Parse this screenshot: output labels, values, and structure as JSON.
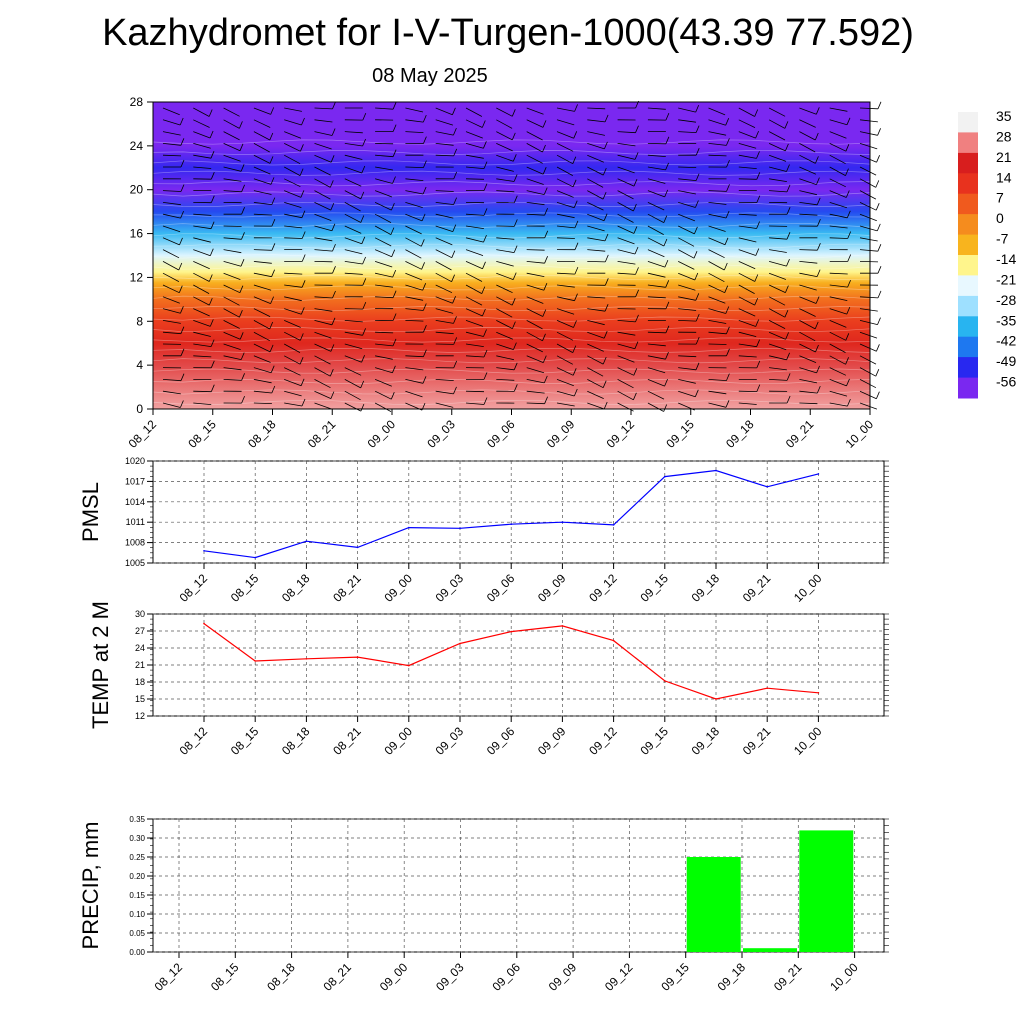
{
  "title": "Kazhydromet for I-V-Turgen-1000(43.39 77.592)",
  "subtitle": "08 May 2025",
  "chart_data": [
    {
      "type": "heatmap",
      "description_key": "cross-section",
      "x_categories": [
        "08_12",
        "08_15",
        "08_18",
        "08_21",
        "09_00",
        "09_03",
        "09_06",
        "09_09",
        "09_12",
        "09_15",
        "09_18",
        "09_21",
        "10_00"
      ],
      "y_ticks": [
        0,
        4,
        8,
        12,
        16,
        20,
        24,
        28
      ],
      "ylim": [
        0,
        28
      ],
      "colorbar_labels": [
        "35",
        "28",
        "21",
        "14",
        "7",
        "0",
        "-7",
        "-14",
        "-21",
        "-28",
        "-35",
        "-42",
        "-49",
        "-56"
      ],
      "colorbar_colors": [
        "#f2f2f2",
        "#f08080",
        "#d81e1e",
        "#e8321e",
        "#f05a1e",
        "#f58c1e",
        "#f8b41e",
        "#fff58c",
        "#e8f8ff",
        "#9ee0ff",
        "#28b4f0",
        "#1e78f0",
        "#2828f0",
        "#7a28f0"
      ],
      "field_bands": [
        {
          "y": 0,
          "value": 30
        },
        {
          "y": 4,
          "value": 24
        },
        {
          "y": 6,
          "value": 18
        },
        {
          "y": 8,
          "value": 12
        },
        {
          "y": 10,
          "value": 4
        },
        {
          "y": 11.5,
          "value": -6
        },
        {
          "y": 12.5,
          "value": -14
        },
        {
          "y": 14,
          "value": -22
        },
        {
          "y": 16,
          "value": -34
        },
        {
          "y": 18,
          "value": -46
        },
        {
          "y": 20,
          "value": -56
        },
        {
          "y": 22,
          "value": -50
        },
        {
          "y": 24,
          "value": -62
        },
        {
          "y": 28,
          "value": -64
        }
      ]
    },
    {
      "type": "line",
      "ylabel": "PMSL",
      "categories": [
        "08_12",
        "08_15",
        "08_18",
        "08_21",
        "09_00",
        "09_03",
        "09_06",
        "09_09",
        "09_12",
        "09_15",
        "09_18",
        "09_21",
        "10_00"
      ],
      "series": [
        {
          "values": [
            1006.8,
            1005.8,
            1008.2,
            1007.3,
            1010.2,
            1010.1,
            1010.7,
            1011.0,
            1010.6,
            1017.7,
            1018.6,
            1016.2,
            1018.1
          ],
          "color": "#0000ff"
        }
      ],
      "ylim": [
        1005,
        1020
      ],
      "yticks": [
        "1005",
        "1008",
        "1011",
        "1014",
        "1017",
        "1020"
      ]
    },
    {
      "type": "line",
      "ylabel": "TEMP at 2 M",
      "categories": [
        "08_12",
        "08_15",
        "08_18",
        "08_21",
        "09_00",
        "09_03",
        "09_06",
        "09_09",
        "09_12",
        "09_15",
        "09_18",
        "09_21",
        "10_00"
      ],
      "series": [
        {
          "values": [
            28.3,
            21.7,
            22.1,
            22.4,
            20.9,
            24.8,
            26.9,
            27.9,
            25.3,
            18.2,
            15.0,
            16.9,
            16.1
          ],
          "color": "#ff0000"
        }
      ],
      "ylim": [
        12,
        30
      ],
      "yticks": [
        "12",
        "15",
        "18",
        "21",
        "24",
        "27",
        "30"
      ]
    },
    {
      "type": "bar",
      "ylabel": "PRECIP, mm",
      "categories": [
        "08_12",
        "08_15",
        "08_18",
        "08_21",
        "09_00",
        "09_03",
        "09_06",
        "09_09",
        "09_12",
        "09_15",
        "09_18",
        "09_21",
        "10_00"
      ],
      "values": [
        0,
        0,
        0,
        0,
        0,
        0,
        0,
        0,
        0,
        0.25,
        0.01,
        0.32,
        0
      ],
      "ylim": [
        0,
        0.35
      ],
      "yticks": [
        "0.00",
        "0.05",
        "0.10",
        "0.15",
        "0.20",
        "0.25",
        "0.30",
        "0.35"
      ],
      "bar_color": "#00ff00"
    }
  ]
}
